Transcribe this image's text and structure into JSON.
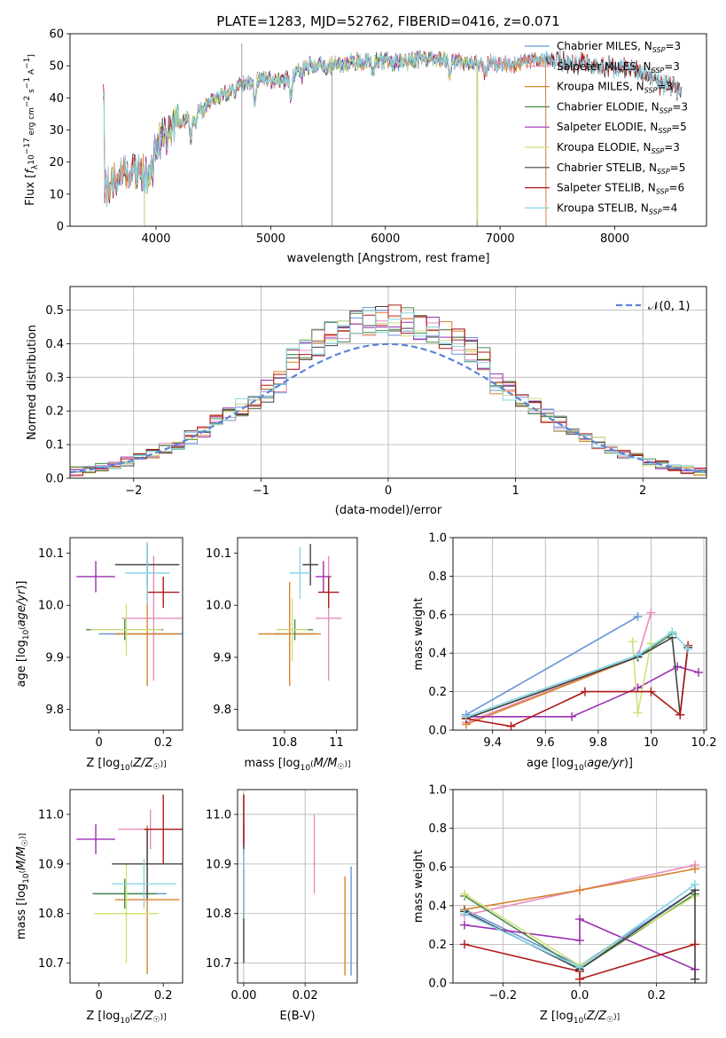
{
  "colors": {
    "Chabrier MILES": "#6a93d8",
    "Salpeter MILES": "#e88bbf",
    "Kroupa MILES": "#d9822b",
    "Chabrier ELODIE": "#4a8a4a",
    "Salpeter ELODIE": "#9b2fb0",
    "Kroupa ELODIE": "#cfe07a",
    "Chabrier STELIB": "#444444",
    "Salpeter STELIB": "#b01818",
    "Kroupa STELIB": "#86d4e6",
    "gauss": "#5b84d6",
    "grid": "#b0b0b0"
  },
  "chart_data": [
    {
      "id": "spectrum",
      "type": "line",
      "title": "PLATE=1283, MJD=52762, FIBERID=0416, z=0.071",
      "xlabel": "wavelength [Angstrom, rest frame]",
      "ylabel": "Flux [f_λ 10^-17 erg cm^-2 s^-1 A^-1]",
      "xlim": [
        3250,
        8800
      ],
      "ylim": [
        0,
        60
      ],
      "xticks": [
        4000,
        5000,
        6000,
        7000,
        8000
      ],
      "yticks": [
        0,
        10,
        20,
        30,
        40,
        50,
        60
      ],
      "grid": false,
      "legend": "top-right",
      "legend_entries": [
        {
          "label": "Chabrier MILES, N",
          "sub": "SSP",
          "suffix": "=3",
          "key": "Chabrier MILES"
        },
        {
          "label": "Salpeter MILES, N",
          "sub": "SSP",
          "suffix": "=3",
          "key": "Salpeter MILES"
        },
        {
          "label": "Kroupa MILES, N",
          "sub": "SSP",
          "suffix": "=3",
          "key": "Kroupa MILES"
        },
        {
          "label": "Chabrier ELODIE, N",
          "sub": "SSP",
          "suffix": "=3",
          "key": "Chabrier ELODIE"
        },
        {
          "label": "Salpeter ELODIE, N",
          "sub": "SSP",
          "suffix": "=5",
          "key": "Salpeter ELODIE"
        },
        {
          "label": "Kroupa ELODIE, N",
          "sub": "SSP",
          "suffix": "=3",
          "key": "Kroupa ELODIE"
        },
        {
          "label": "Chabrier STELIB, N",
          "sub": "SSP",
          "suffix": "=5",
          "key": "Chabrier STELIB"
        },
        {
          "label": "Salpeter STELIB, N",
          "sub": "SSP",
          "suffix": "=6",
          "key": "Salpeter STELIB"
        },
        {
          "label": "Kroupa STELIB, N",
          "sub": "SSP",
          "suffix": "=4",
          "key": "Kroupa STELIB"
        }
      ],
      "continuum": [
        [
          3550,
          12
        ],
        [
          3700,
          15
        ],
        [
          3800,
          18
        ],
        [
          3900,
          16
        ],
        [
          4000,
          25
        ],
        [
          4100,
          31
        ],
        [
          4250,
          33
        ],
        [
          4400,
          36
        ],
        [
          4500,
          40
        ],
        [
          4700,
          43
        ],
        [
          4900,
          46
        ],
        [
          5100,
          45
        ],
        [
          5300,
          50
        ],
        [
          5500,
          50
        ],
        [
          5700,
          51
        ],
        [
          5900,
          52
        ],
        [
          6100,
          51
        ],
        [
          6300,
          52
        ],
        [
          6500,
          52
        ],
        [
          6700,
          51
        ],
        [
          6900,
          51
        ],
        [
          7100,
          50
        ],
        [
          7300,
          52
        ],
        [
          7500,
          52
        ],
        [
          7700,
          51
        ],
        [
          7900,
          50
        ],
        [
          8100,
          49
        ],
        [
          8300,
          47
        ],
        [
          8450,
          44
        ],
        [
          8580,
          43
        ]
      ],
      "series_ranges": {
        "Chabrier MILES": [
          3540,
          7400
        ],
        "Salpeter MILES": [
          3540,
          7400
        ],
        "Kroupa MILES": [
          3540,
          7400
        ],
        "Chabrier ELODIE": [
          3900,
          6800
        ],
        "Salpeter ELODIE": [
          3900,
          6800
        ],
        "Kroupa ELODIE": [
          3900,
          6800
        ],
        "Chabrier STELIB": [
          3540,
          8580
        ],
        "Salpeter STELIB": [
          3540,
          8580
        ],
        "Kroupa STELIB": [
          3540,
          8580
        ]
      }
    },
    {
      "id": "residuals",
      "type": "line",
      "xlabel": "(data-model)/error",
      "ylabel": "Normed distribution",
      "xlim": [
        -2.5,
        2.5
      ],
      "ylim": [
        0,
        0.57
      ],
      "xticks": [
        -2,
        -1,
        0,
        1,
        2
      ],
      "xtick_labels": [
        "−2",
        "−1",
        "0",
        "1",
        "2"
      ],
      "yticks": [
        0.0,
        0.1,
        0.2,
        0.3,
        0.4,
        0.5
      ],
      "grid": true,
      "legend": "top-right",
      "gaussian_label": "𝒩(0, 1)",
      "bin_width": 0.1
    },
    {
      "id": "age_vs_Z",
      "type": "scatter",
      "xlabel": "Z [log10(Z/Z☉)]",
      "ylabel": "age  [log10(age/yr)]",
      "xlim": [
        -0.09,
        0.26
      ],
      "ylim": [
        9.76,
        10.13
      ],
      "xticks": [
        0.0,
        0.2
      ],
      "yticks": [
        9.8,
        9.9,
        10.0,
        10.1
      ],
      "grid": false,
      "points": [
        {
          "key": "Chabrier MILES",
          "x": 0.14,
          "y": 9.945,
          "xerr": 0.14,
          "yerr": 0.0
        },
        {
          "key": "Salpeter MILES",
          "x": 0.17,
          "y": 9.975,
          "xerr": 0.1,
          "yerr": 0.12
        },
        {
          "key": "Kroupa MILES",
          "x": 0.15,
          "y": 9.945,
          "xerr": 0.1,
          "yerr": 0.1
        },
        {
          "key": "Chabrier ELODIE",
          "x": 0.08,
          "y": 9.953,
          "xerr": 0.12,
          "yerr": 0.02
        },
        {
          "key": "Salpeter ELODIE",
          "x": -0.01,
          "y": 10.055,
          "xerr": 0.06,
          "yerr": 0.03
        },
        {
          "key": "Kroupa ELODIE",
          "x": 0.085,
          "y": 9.953,
          "xerr": 0.11,
          "yerr": 0.05
        },
        {
          "key": "Chabrier STELIB",
          "x": 0.15,
          "y": 10.078,
          "xerr": 0.1,
          "yerr": 0.04
        },
        {
          "key": "Salpeter STELIB",
          "x": 0.2,
          "y": 10.025,
          "xerr": 0.05,
          "yerr": 0.03
        },
        {
          "key": "Kroupa STELIB",
          "x": 0.15,
          "y": 10.062,
          "xerr": 0.07,
          "yerr": 0.06
        }
      ]
    },
    {
      "id": "age_vs_mass",
      "type": "scatter",
      "xlabel": "mass [log10(M/M☉)]",
      "ylabel": "",
      "xlim": [
        10.62,
        11.08
      ],
      "ylim": [
        9.76,
        10.13
      ],
      "xticks": [
        10.8,
        11.0
      ],
      "yticks": [
        9.8,
        9.9,
        10.0,
        10.1
      ],
      "grid": false,
      "points": [
        {
          "key": "Chabrier MILES",
          "x": 10.84,
          "y": 9.945,
          "xerr": 0.08,
          "yerr": 0.0
        },
        {
          "key": "Salpeter MILES",
          "x": 10.97,
          "y": 9.975,
          "xerr": 0.05,
          "yerr": 0.12
        },
        {
          "key": "Kroupa MILES",
          "x": 10.82,
          "y": 9.945,
          "xerr": 0.12,
          "yerr": 0.1
        },
        {
          "key": "Chabrier ELODIE",
          "x": 10.84,
          "y": 9.953,
          "xerr": 0.07,
          "yerr": 0.02
        },
        {
          "key": "Salpeter ELODIE",
          "x": 10.95,
          "y": 10.055,
          "xerr": 0.03,
          "yerr": 0.03
        },
        {
          "key": "Kroupa ELODIE",
          "x": 10.83,
          "y": 9.953,
          "xerr": 0.06,
          "yerr": 0.06
        },
        {
          "key": "Chabrier STELIB",
          "x": 10.9,
          "y": 10.078,
          "xerr": 0.03,
          "yerr": 0.04
        },
        {
          "key": "Salpeter STELIB",
          "x": 10.97,
          "y": 10.025,
          "xerr": 0.04,
          "yerr": 0.03
        },
        {
          "key": "Kroupa STELIB",
          "x": 10.86,
          "y": 10.062,
          "xerr": 0.04,
          "yerr": 0.05
        }
      ]
    },
    {
      "id": "weight_vs_age",
      "type": "line",
      "xlabel": "age  [log10(age/yr)]",
      "ylabel": "mass weight",
      "xlim": [
        9.25,
        10.21
      ],
      "ylim": [
        0,
        1.0
      ],
      "xticks": [
        9.4,
        9.6,
        9.8,
        10.0,
        10.2
      ],
      "yticks": [
        0.0,
        0.2,
        0.4,
        0.6,
        0.8,
        1.0
      ],
      "grid": true,
      "series": [
        {
          "key": "Chabrier MILES",
          "x": [
            9.3,
            9.95
          ],
          "y": [
            0.08,
            0.59
          ]
        },
        {
          "key": "Salpeter MILES",
          "x": [
            9.3,
            9.95,
            10.0
          ],
          "y": [
            0.04,
            0.38,
            0.61
          ]
        },
        {
          "key": "Kroupa MILES",
          "x": [
            9.3,
            9.95
          ],
          "y": [
            0.03,
            0.38
          ]
        },
        {
          "key": "Chabrier ELODIE",
          "x": [
            9.3,
            9.95,
            10.08
          ],
          "y": [
            0.06,
            0.38,
            0.5
          ]
        },
        {
          "key": "Salpeter ELODIE",
          "x": [
            9.3,
            9.7,
            9.95,
            10.1,
            10.18
          ],
          "y": [
            0.07,
            0.07,
            0.22,
            0.33,
            0.3
          ]
        },
        {
          "key": "Kroupa ELODIE",
          "x": [
            9.93,
            9.95,
            10.0
          ],
          "y": [
            0.46,
            0.09,
            0.45
          ]
        },
        {
          "key": "Chabrier STELIB",
          "x": [
            9.3,
            9.95,
            10.08,
            10.11,
            10.14
          ],
          "y": [
            0.06,
            0.38,
            0.48,
            0.08,
            0.43
          ]
        },
        {
          "key": "Salpeter STELIB",
          "x": [
            9.3,
            9.47,
            9.75,
            10.0,
            10.11,
            10.14
          ],
          "y": [
            0.06,
            0.02,
            0.2,
            0.2,
            0.08,
            0.44
          ]
        },
        {
          "key": "Kroupa STELIB",
          "x": [
            9.3,
            9.95,
            10.08,
            10.14
          ],
          "y": [
            0.07,
            0.39,
            0.51,
            0.42
          ]
        }
      ]
    },
    {
      "id": "mass_vs_Z",
      "type": "scatter",
      "xlabel": "Z [log10(Z/Z☉)]",
      "ylabel": "mass [log10(M/M☉)]",
      "xlim": [
        -0.09,
        0.26
      ],
      "ylim": [
        10.66,
        11.05
      ],
      "xticks": [
        0.0,
        0.2
      ],
      "yticks": [
        10.7,
        10.8,
        10.9,
        11.0
      ],
      "grid": false,
      "points": [
        {
          "key": "Chabrier MILES",
          "x": 0.1,
          "y": 10.84,
          "xerr": 0.11,
          "yerr": 0.0
        },
        {
          "key": "Salpeter MILES",
          "x": 0.16,
          "y": 10.97,
          "xerr": 0.1,
          "yerr": 0.04
        },
        {
          "key": "Kroupa MILES",
          "x": 0.15,
          "y": 10.828,
          "xerr": 0.1,
          "yerr": 0.15
        },
        {
          "key": "Chabrier ELODIE",
          "x": 0.08,
          "y": 10.84,
          "xerr": 0.1,
          "yerr": 0.03
        },
        {
          "key": "Salpeter ELODIE",
          "x": -0.01,
          "y": 10.95,
          "xerr": 0.06,
          "yerr": 0.03
        },
        {
          "key": "Kroupa ELODIE",
          "x": 0.085,
          "y": 10.8,
          "xerr": 0.1,
          "yerr": 0.1
        },
        {
          "key": "Chabrier STELIB",
          "x": 0.15,
          "y": 10.9,
          "xerr": 0.11,
          "yerr": 0.07
        },
        {
          "key": "Salpeter STELIB",
          "x": 0.2,
          "y": 10.97,
          "xerr": 0.06,
          "yerr": 0.07
        },
        {
          "key": "Kroupa STELIB",
          "x": 0.14,
          "y": 10.86,
          "xerr": 0.1,
          "yerr": 0.05
        }
      ]
    },
    {
      "id": "mass_vs_ebv",
      "type": "scatter",
      "xlabel": "E(B-V)",
      "ylabel": "",
      "xlim": [
        -0.002,
        0.037
      ],
      "ylim": [
        10.66,
        11.05
      ],
      "xticks": [
        0.0,
        0.02
      ],
      "xtick_labels": [
        "0.00",
        "0.02"
      ],
      "yticks": [
        10.7,
        10.8,
        10.9,
        11.0
      ],
      "grid": true,
      "points": [
        {
          "key": "Chabrier MILES",
          "x": 0.035,
          "y": 10.785,
          "xerr": 0.0,
          "yerr": 0.11
        },
        {
          "key": "Salpeter MILES",
          "x": 0.023,
          "y": 10.92,
          "xerr": 0.0,
          "yerr": 0.08
        },
        {
          "key": "Kroupa MILES",
          "x": 0.033,
          "y": 10.775,
          "xerr": 0.0,
          "yerr": 0.1
        },
        {
          "key": "Chabrier ELODIE",
          "x": 0.0,
          "y": 10.84,
          "xerr": 0.0,
          "yerr": 0.05
        },
        {
          "key": "Salpeter ELODIE",
          "x": 0.0,
          "y": 10.95,
          "xerr": 0.0,
          "yerr": 0.03
        },
        {
          "key": "Kroupa ELODIE",
          "x": 0.0,
          "y": 10.8,
          "xerr": 0.0,
          "yerr": 0.09
        },
        {
          "key": "Chabrier STELIB",
          "x": 0.0,
          "y": 10.87,
          "xerr": 0.0,
          "yerr": 0.17
        },
        {
          "key": "Salpeter STELIB",
          "x": 0.0,
          "y": 10.99,
          "xerr": 0.0,
          "yerr": 0.05
        },
        {
          "key": "Kroupa STELIB",
          "x": 0.0,
          "y": 10.86,
          "xerr": 0.0,
          "yerr": 0.07
        }
      ]
    },
    {
      "id": "weight_vs_Z",
      "type": "line",
      "xlabel": "Z [log10(Z/Z☉)]",
      "ylabel": "mass weight",
      "xlim": [
        -0.33,
        0.33
      ],
      "ylim": [
        0,
        1.0
      ],
      "xticks": [
        -0.2,
        0.0,
        0.2
      ],
      "xtick_labels": [
        "−0.2",
        "0.0",
        "0.2"
      ],
      "yticks": [
        0.0,
        0.2,
        0.4,
        0.6,
        0.8,
        1.0
      ],
      "grid": true,
      "series": [
        {
          "key": "Chabrier MILES",
          "x": [
            -0.3,
            0.0,
            0.3
          ],
          "y": [
            0.38,
            0.09,
            0.48
          ]
        },
        {
          "key": "Salpeter MILES",
          "x": [
            -0.3,
            0.0,
            0.3
          ],
          "y": [
            0.35,
            0.48,
            0.61
          ]
        },
        {
          "key": "Kroupa MILES",
          "x": [
            -0.3,
            0.0,
            0.3
          ],
          "y": [
            0.38,
            0.48,
            0.59
          ]
        },
        {
          "key": "Chabrier ELODIE",
          "x": [
            -0.3,
            0.0,
            0.3
          ],
          "y": [
            0.45,
            0.07,
            0.46
          ]
        },
        {
          "key": "Salpeter ELODIE",
          "x": [
            -0.3,
            0.0,
            0.0,
            0.3
          ],
          "y": [
            0.3,
            0.22,
            0.33,
            0.07
          ]
        },
        {
          "key": "Kroupa ELODIE",
          "x": [
            -0.3,
            0.0,
            0.3
          ],
          "y": [
            0.46,
            0.09,
            0.45
          ]
        },
        {
          "key": "Chabrier STELIB",
          "x": [
            -0.3,
            0.0,
            0.3,
            0.3
          ],
          "y": [
            0.37,
            0.07,
            0.48,
            0.02
          ]
        },
        {
          "key": "Salpeter STELIB",
          "x": [
            -0.3,
            0.0,
            0.0,
            0.3
          ],
          "y": [
            0.2,
            0.06,
            0.02,
            0.2
          ]
        },
        {
          "key": "Kroupa STELIB",
          "x": [
            -0.3,
            0.0,
            0.3
          ],
          "y": [
            0.36,
            0.08,
            0.51
          ]
        }
      ]
    }
  ]
}
